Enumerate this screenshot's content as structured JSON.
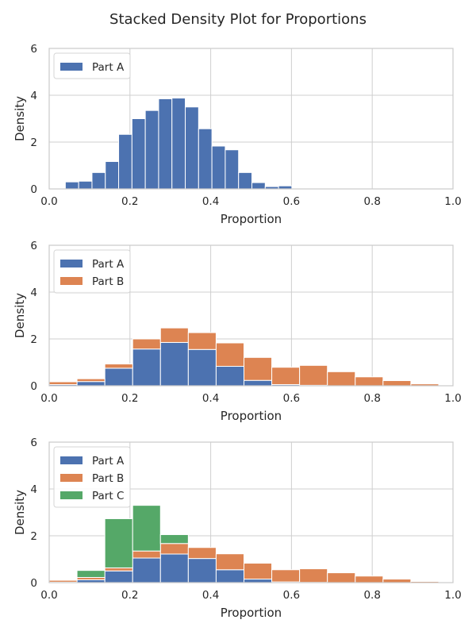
{
  "figure": {
    "title": "Stacked Density Plot for Proportions"
  },
  "colors": {
    "Part A": "#4c72b0",
    "Part B": "#dd8452",
    "Part C": "#55a868"
  },
  "chart_data": [
    {
      "type": "bar",
      "stacked": true,
      "title": "",
      "xlabel": "Proportion",
      "ylabel": "Density",
      "xlim": [
        0,
        1
      ],
      "ylim": [
        0,
        6
      ],
      "xticks": [
        "0.0",
        "0.2",
        "0.4",
        "0.6",
        "0.8",
        "1.0"
      ],
      "yticks": [
        "0",
        "2",
        "4",
        "6"
      ],
      "grid": true,
      "legend": "top-left",
      "bin_edges": [
        0.04,
        0.073,
        0.106,
        0.139,
        0.172,
        0.205,
        0.238,
        0.271,
        0.304,
        0.337,
        0.37,
        0.403,
        0.436,
        0.469,
        0.502,
        0.535,
        0.568,
        0.601
      ],
      "series": [
        {
          "name": "Part A",
          "values": [
            0.3,
            0.33,
            0.7,
            1.17,
            2.33,
            3.0,
            3.35,
            3.85,
            3.88,
            3.5,
            2.57,
            1.83,
            1.67,
            0.7,
            0.27,
            0.1,
            0.13
          ]
        }
      ]
    },
    {
      "type": "bar",
      "stacked": true,
      "title": "",
      "xlabel": "Proportion",
      "ylabel": "Density",
      "xlim": [
        0,
        1
      ],
      "ylim": [
        0,
        6
      ],
      "xticks": [
        "0.0",
        "0.2",
        "0.4",
        "0.6",
        "0.8",
        "1.0"
      ],
      "yticks": [
        "0",
        "2",
        "4",
        "6"
      ],
      "grid": true,
      "legend": "top-left",
      "bin_edges": [
        0.0,
        0.0689,
        0.1378,
        0.2067,
        0.2756,
        0.3445,
        0.4134,
        0.4823,
        0.5512,
        0.6201,
        0.689,
        0.7579,
        0.8268,
        0.8957,
        0.9646
      ],
      "series": [
        {
          "name": "Part A",
          "values": [
            0.05,
            0.18,
            0.75,
            1.57,
            1.85,
            1.55,
            0.83,
            0.23,
            0.05,
            0.02,
            0.0,
            0.0,
            0.0,
            0.0
          ]
        },
        {
          "name": "Part B",
          "values": [
            0.12,
            0.12,
            0.18,
            0.43,
            0.62,
            0.72,
            1.0,
            0.98,
            0.74,
            0.85,
            0.6,
            0.38,
            0.22,
            0.08
          ]
        }
      ]
    },
    {
      "type": "bar",
      "stacked": true,
      "title": "",
      "xlabel": "Proportion",
      "ylabel": "Density",
      "xlim": [
        0,
        1
      ],
      "ylim": [
        0,
        6
      ],
      "xticks": [
        "0.0",
        "0.2",
        "0.4",
        "0.6",
        "0.8",
        "1.0"
      ],
      "yticks": [
        "0",
        "2",
        "4",
        "6"
      ],
      "grid": true,
      "legend": "top-left",
      "bin_edges": [
        0.0,
        0.0689,
        0.1378,
        0.2067,
        0.2756,
        0.3445,
        0.4134,
        0.4823,
        0.5512,
        0.6201,
        0.689,
        0.7579,
        0.8268,
        0.8957,
        0.9646
      ],
      "series": [
        {
          "name": "Part A",
          "values": [
            0.02,
            0.12,
            0.5,
            1.05,
            1.22,
            1.03,
            0.55,
            0.15,
            0.03,
            0.01,
            0.0,
            0.0,
            0.0,
            0.0
          ]
        },
        {
          "name": "Part B",
          "values": [
            0.08,
            0.1,
            0.13,
            0.3,
            0.45,
            0.47,
            0.68,
            0.68,
            0.52,
            0.58,
            0.42,
            0.28,
            0.15,
            0.05
          ]
        },
        {
          "name": "Part C",
          "values": [
            0.0,
            0.3,
            2.1,
            1.95,
            0.38,
            0.0,
            0.0,
            0.0,
            0.0,
            0.0,
            0.0,
            0.0,
            0.0,
            0.0
          ]
        }
      ]
    }
  ]
}
